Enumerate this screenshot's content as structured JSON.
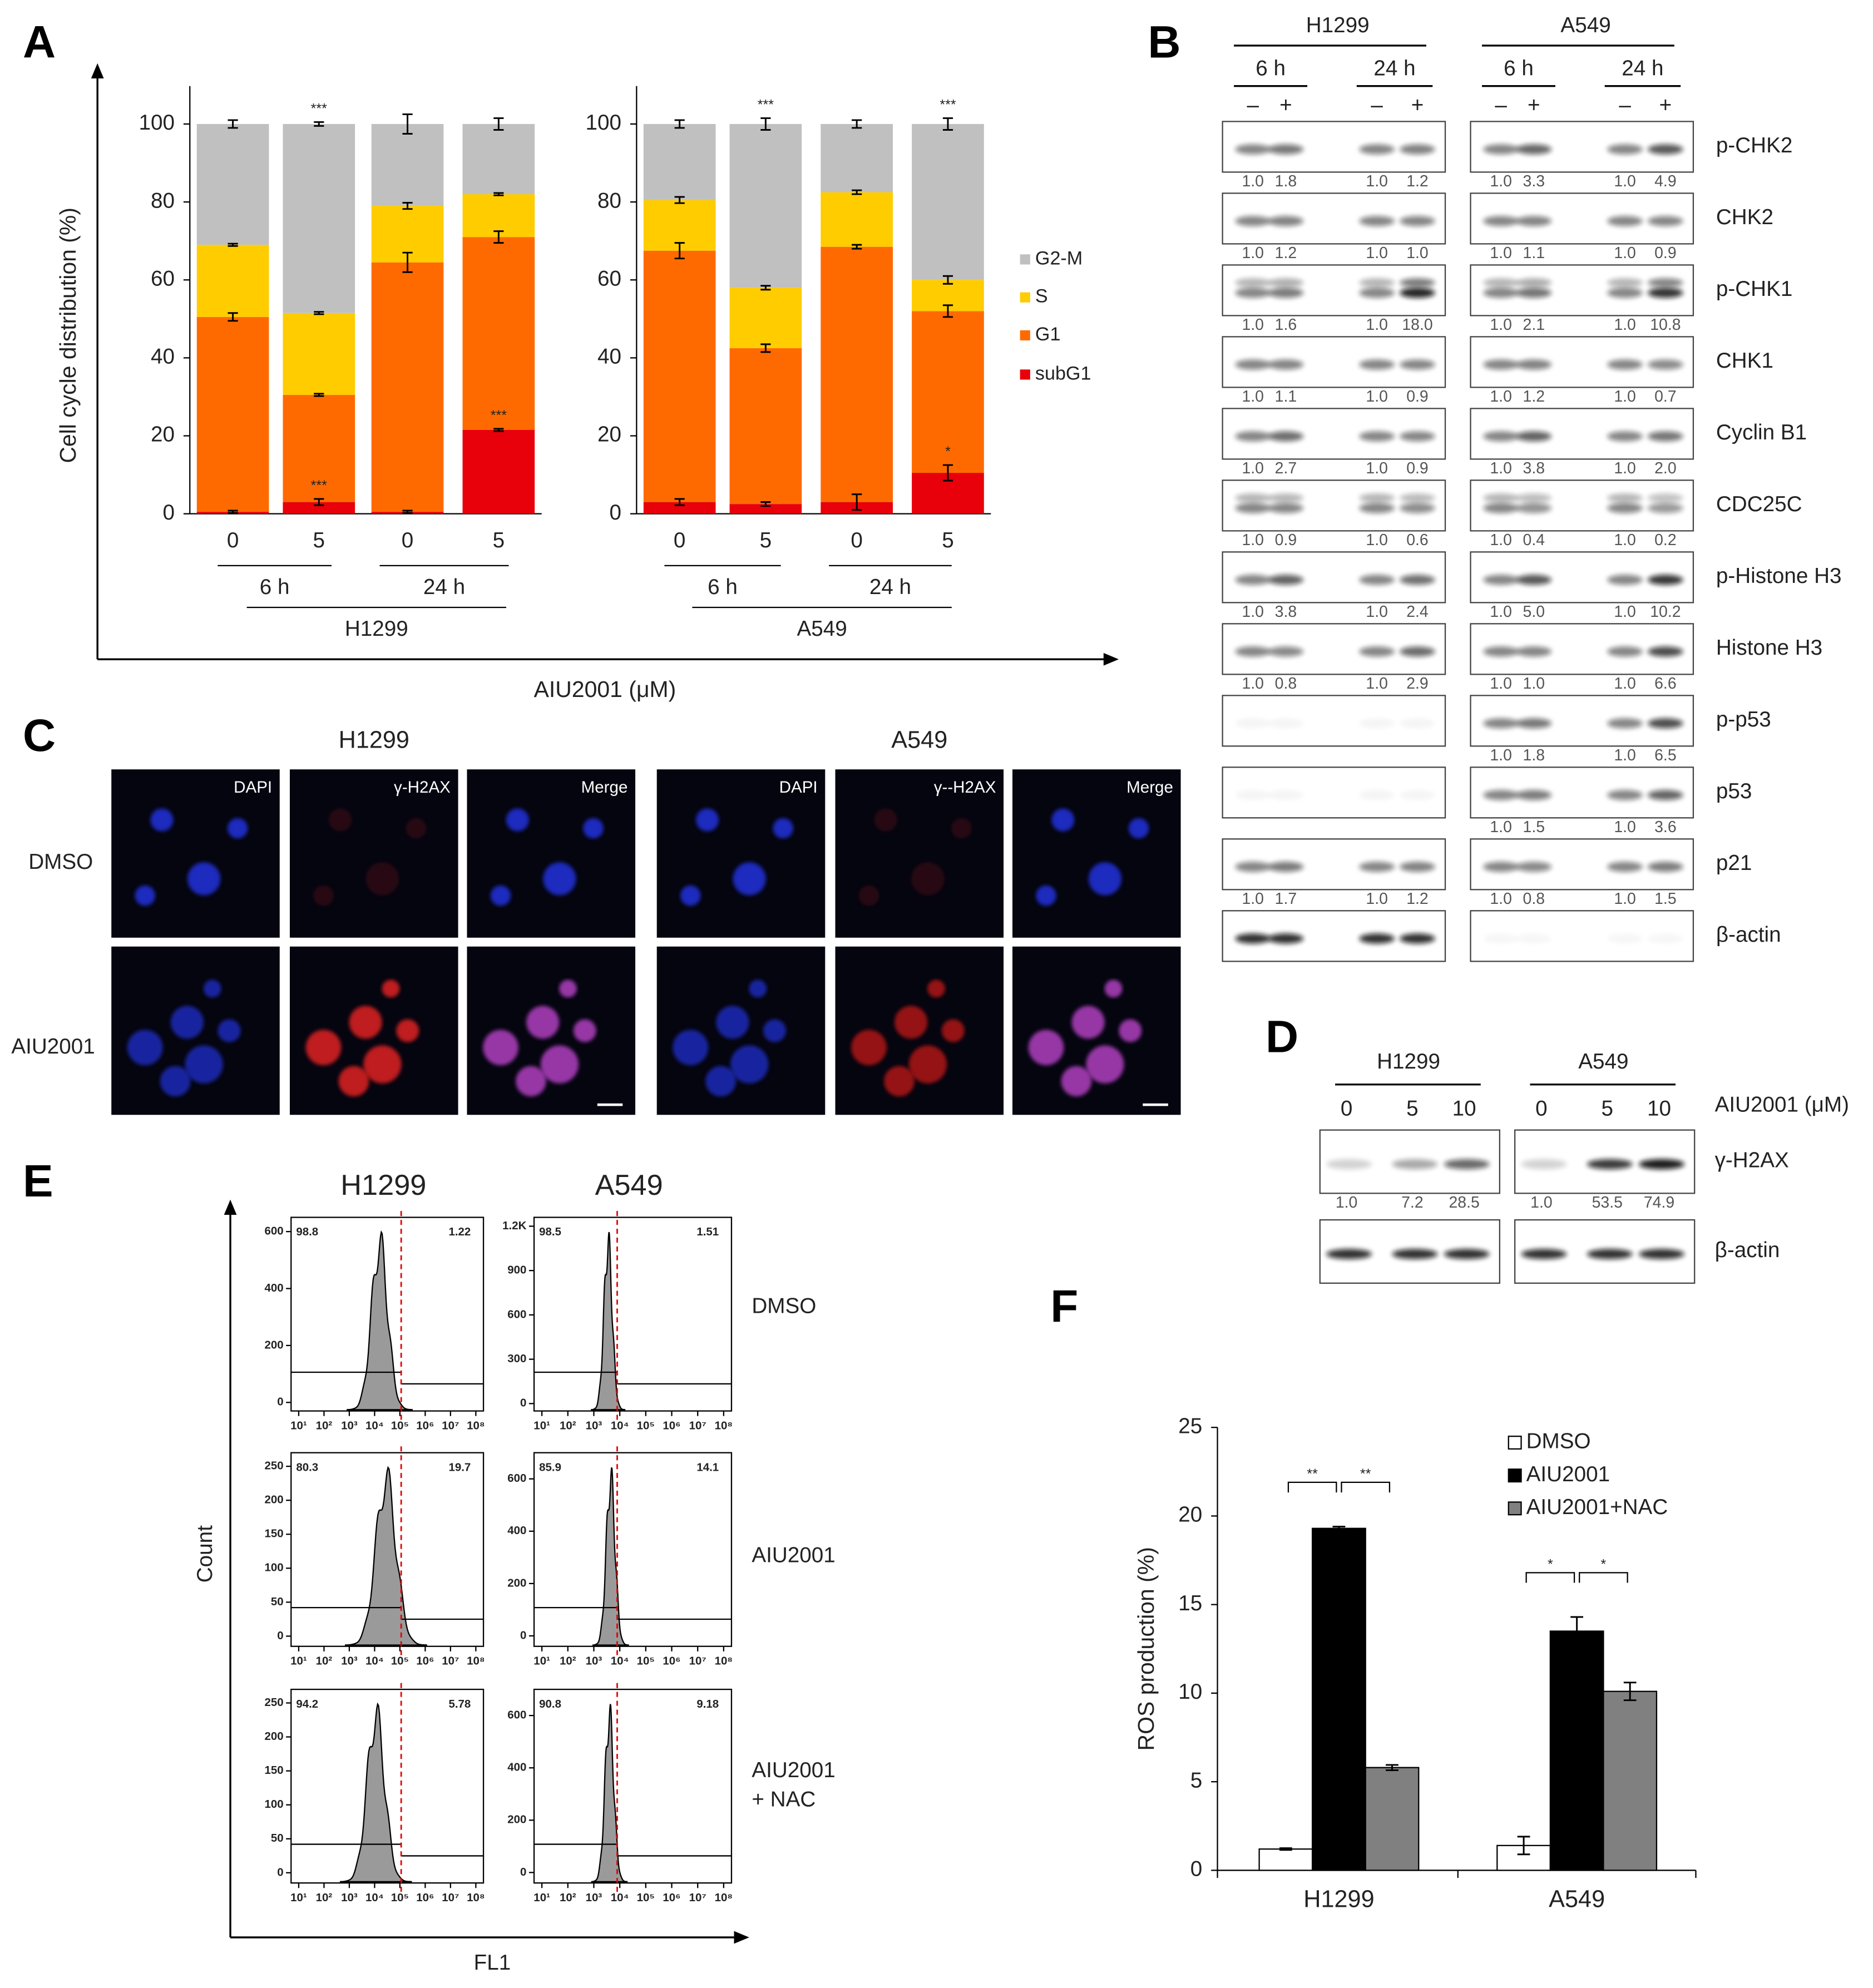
{
  "chart_data": [
    {
      "type": "stacked_bar",
      "panel": "A",
      "ylabel": "Cell cycle distribution (%)",
      "xlabel": "AIU2001 (μM)",
      "group": "H1299",
      "categories": [
        "0",
        "5",
        "0",
        "5"
      ],
      "subgroups": [
        "6 h",
        "24 h"
      ],
      "ylim": [
        0,
        100
      ],
      "yticks": [
        0,
        20,
        40,
        60,
        80,
        100
      ],
      "series": [
        {
          "name": "subG1",
          "color": "#e8000b",
          "values": [
            0.5,
            3,
            0.5,
            21.5
          ],
          "errors": [
            0.3,
            0.8,
            0.3,
            0.3
          ]
        },
        {
          "name": "G1",
          "color": "#ff6a00",
          "values": [
            50,
            27.5,
            64,
            49.5
          ],
          "errors": [
            1,
            0.3,
            2.5,
            1.5
          ]
        },
        {
          "name": "S",
          "color": "#ffcc00",
          "values": [
            18.5,
            21,
            14.5,
            11
          ],
          "errors": [
            0.3,
            0.3,
            0.8,
            0.3
          ]
        },
        {
          "name": "G2-M",
          "color": "#c0c0c0",
          "values": [
            31,
            48.5,
            21,
            18
          ],
          "errors": [
            1,
            0.5,
            2.5,
            1.5
          ]
        }
      ],
      "annotations": [
        "***",
        "***",
        "***"
      ]
    },
    {
      "type": "stacked_bar",
      "group": "A549",
      "categories": [
        "0",
        "5",
        "0",
        "5"
      ],
      "subgroups": [
        "6 h",
        "24 h"
      ],
      "ylim": [
        0,
        100
      ],
      "yticks": [
        0,
        20,
        40,
        60,
        80,
        100
      ],
      "series": [
        {
          "color": "#e8000b",
          "values": [
            3,
            2.5,
            3,
            10.5
          ],
          "errors": [
            0.8,
            0.5,
            2,
            2
          ]
        },
        {
          "color": "#ff6a00",
          "values": [
            64.5,
            40,
            65.5,
            41.5
          ],
          "errors": [
            2,
            1,
            0.5,
            1.5
          ]
        },
        {
          "color": "#ffcc00",
          "values": [
            13,
            15.5,
            14,
            8
          ],
          "errors": [
            0.8,
            0.5,
            0.5,
            1
          ]
        },
        {
          "color": "#c0c0c0",
          "values": [
            19.5,
            42,
            17.5,
            40
          ],
          "errors": [
            1,
            1.5,
            1,
            1.5
          ]
        }
      ],
      "annotations": [
        "***",
        "***",
        "*"
      ]
    },
    {
      "type": "bar",
      "panel": "F",
      "ylabel": "ROS production (%)",
      "categories": [
        "H1299",
        "A549"
      ],
      "ylim": [
        0,
        25
      ],
      "yticks": [
        0,
        5,
        10,
        15,
        20,
        25
      ],
      "series": [
        {
          "name": "DMSO",
          "color": "#ffffff",
          "values": [
            1.2,
            1.4
          ],
          "errors": [
            0.05,
            0.5
          ]
        },
        {
          "name": "AIU2001",
          "color": "#000000",
          "values": [
            19.3,
            13.5
          ],
          "errors": [
            0.1,
            0.8
          ]
        },
        {
          "name": "AIU2001+NAC",
          "color": "#808080",
          "values": [
            5.8,
            10.1
          ],
          "errors": [
            0.15,
            0.5
          ]
        }
      ],
      "annotations": [
        "**",
        "**",
        "*",
        "*"
      ]
    }
  ],
  "blot_b": {
    "label": "B",
    "cells": [
      "H1299",
      "A549"
    ],
    "times": [
      "6 h",
      "24 h"
    ],
    "treatment": [
      "–",
      "+"
    ],
    "rows": [
      {
        "name": "p-CHK2",
        "h1299": [
          "1.0",
          "1.8",
          "1.0",
          "1.2"
        ],
        "a549": [
          "1.0",
          "3.3",
          "1.0",
          "4.9"
        ]
      },
      {
        "name": "CHK2",
        "h1299": [
          "1.0",
          "1.2",
          "1.0",
          "1.0"
        ],
        "a549": [
          "1.0",
          "1.1",
          "1.0",
          "0.9"
        ]
      },
      {
        "name": "p-CHK1",
        "h1299": [
          "1.0",
          "1.6",
          "1.0",
          "18.0"
        ],
        "a549": [
          "1.0",
          "2.1",
          "1.0",
          "10.8"
        ]
      },
      {
        "name": "CHK1",
        "h1299": [
          "1.0",
          "1.1",
          "1.0",
          "0.9"
        ],
        "a549": [
          "1.0",
          "1.2",
          "1.0",
          "0.7"
        ]
      },
      {
        "name": "Cyclin B1",
        "h1299": [
          "1.0",
          "2.7",
          "1.0",
          "0.9"
        ],
        "a549": [
          "1.0",
          "3.8",
          "1.0",
          "2.0"
        ]
      },
      {
        "name": "CDC25C",
        "h1299": [
          "1.0",
          "0.9",
          "1.0",
          "0.6"
        ],
        "a549": [
          "1.0",
          "0.4",
          "1.0",
          "0.2"
        ]
      },
      {
        "name": "p-Histone H3",
        "h1299": [
          "1.0",
          "3.8",
          "1.0",
          "2.4"
        ],
        "a549": [
          "1.0",
          "5.0",
          "1.0",
          "10.2"
        ]
      },
      {
        "name": "Histone H3",
        "h1299": [
          "1.0",
          "0.8",
          "1.0",
          "2.9"
        ],
        "a549": [
          "1.0",
          "1.0",
          "1.0",
          "6.6"
        ]
      },
      {
        "name": "p-p53",
        "a549": [
          "1.0",
          "1.8",
          "1.0",
          "6.5"
        ]
      },
      {
        "name": "p53",
        "a549": [
          "1.0",
          "1.5",
          "1.0",
          "3.6"
        ]
      },
      {
        "name": "p21",
        "h1299": [
          "1.0",
          "1.7",
          "1.0",
          "1.2"
        ],
        "a549": [
          "1.0",
          "0.8",
          "1.0",
          "1.5"
        ]
      },
      {
        "name": "β-actin"
      }
    ]
  },
  "images_c": {
    "label": "C",
    "cells": [
      "H1299",
      "A549"
    ],
    "channels": [
      [
        "DAPI",
        "γ-H2AX",
        "Merge"
      ],
      [
        "DAPI",
        "γ--H2AX",
        "Merge"
      ]
    ],
    "rows": [
      "DMSO",
      "AIU2001"
    ]
  },
  "blot_d": {
    "label": "D",
    "cells": [
      "H1299",
      "A549"
    ],
    "doses": [
      "0",
      "5",
      "10"
    ],
    "dose_label": "AIU2001 (μM)",
    "rows": [
      {
        "name": "γ-H2AX",
        "h1299": [
          "1.0",
          "7.2",
          "28.5"
        ],
        "a549": [
          "1.0",
          "53.5",
          "74.9"
        ]
      },
      {
        "name": "β-actin"
      }
    ]
  },
  "flow_e": {
    "label": "E",
    "cells": [
      "H1299",
      "A549"
    ],
    "conditions": [
      [
        "DMSO"
      ],
      [
        "AIU2001"
      ],
      [
        "AIU2001",
        "+ NAC"
      ]
    ],
    "ylabel": "Count",
    "xlabel": "FL1",
    "xscale": "log",
    "xlim": [
      5,
      200000000
    ],
    "xticks": [
      {
        "value": 10,
        "label": "10¹"
      },
      {
        "value": 100,
        "label": "10²"
      },
      {
        "value": 1000,
        "label": "10³"
      },
      {
        "value": 10000,
        "label": "10⁴"
      },
      {
        "value": 100000,
        "label": "10⁵"
      },
      {
        "value": 1000000,
        "label": "10⁶"
      },
      {
        "value": 10000000,
        "label": "10⁷"
      },
      {
        "value": 100000000,
        "label": "10⁸"
      }
    ],
    "plots": [
      [
        {
          "ylim": [
            -30,
            650
          ],
          "yticks": [
            0,
            200,
            400,
            600
          ],
          "left": 98.8,
          "right": 1.22
        },
        {
          "ylim": [
            -50,
            1260
          ],
          "yticks": [
            0,
            300,
            600,
            900,
            {
              "value": 1200,
              "label": "1.2K"
            }
          ],
          "left": 98.5,
          "right": 1.51
        }
      ],
      [
        {
          "ylim": [
            -15,
            270
          ],
          "yticks": [
            0,
            50,
            100,
            150,
            200,
            250
          ],
          "left": 80.3,
          "right": 19.7
        },
        {
          "ylim": [
            -40,
            700
          ],
          "yticks": [
            0,
            200,
            400,
            600
          ],
          "left": 85.9,
          "right": 14.1
        }
      ],
      [
        {
          "ylim": [
            -15,
            270
          ],
          "yticks": [
            0,
            50,
            100,
            150,
            200,
            250
          ],
          "left": 94.2,
          "right": 5.78
        },
        {
          "ylim": [
            -40,
            700
          ],
          "yticks": [
            0,
            200,
            400,
            600
          ],
          "left": 90.8,
          "right": 9.18
        }
      ]
    ]
  }
}
